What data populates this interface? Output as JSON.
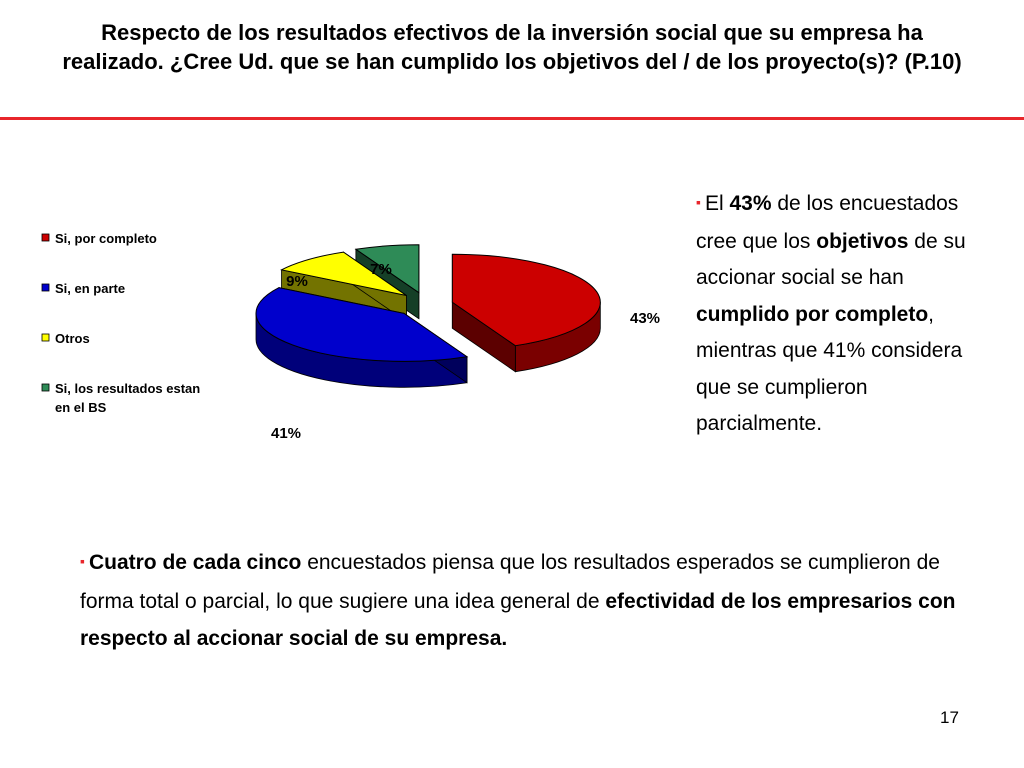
{
  "title": "Respecto de los resultados efectivos de la inversión social que su empresa ha realizado. ¿Cree Ud. que se han cumplido los objetivos del / de los proyecto(s)? (P.10)",
  "chart_data": {
    "type": "pie",
    "labels": [
      "Si, por completo",
      "Si, en parte",
      "Otros",
      "Si, los resultados estan en el BS"
    ],
    "values": [
      43,
      41,
      9,
      7
    ],
    "value_labels": [
      "43%",
      "41%",
      "9%",
      "7%"
    ],
    "colors": [
      "#cc0000",
      "#0000cc",
      "#ffff00",
      "#2e8b57"
    ],
    "legend": {
      "placement": "left",
      "items": [
        {
          "lines": [
            "Si, por completo"
          ]
        },
        {
          "lines": [
            "Si, en parte"
          ]
        },
        {
          "lines": [
            "Otros"
          ]
        },
        {
          "lines": [
            "Si, los resultados estan",
            "en el BS"
          ]
        }
      ]
    },
    "style": "3d-exploded"
  },
  "side_note": {
    "bullet": "▪",
    "p1": "El ",
    "b1": "43%",
    "p2": " de los encuestados cree que los ",
    "b2": "objetivos",
    "p3": " de su accionar social se han ",
    "b3": "cumplido por completo",
    "p4": ", mientras que 41% considera que se cumplieron parcialmente."
  },
  "bottom_note": {
    "bullet": "▪",
    "b1": "Cuatro de cada cinco",
    "p1": " encuestados piensa que los resultados esperados se cumplieron de forma total o parcial, lo que sugiere una idea general de ",
    "b2": "efectividad de los empresarios con respecto al accionar social de su empresa."
  },
  "page_number": "17"
}
